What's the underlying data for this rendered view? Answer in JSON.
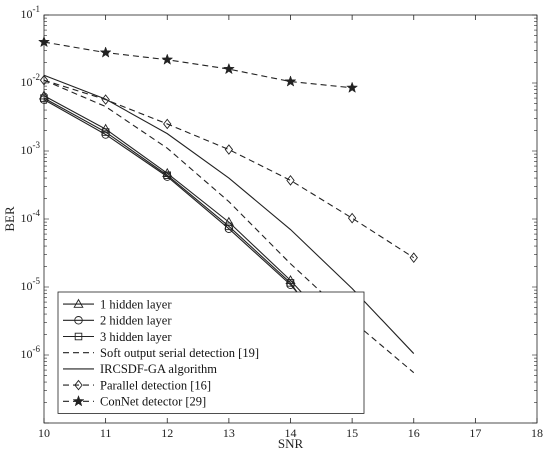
{
  "chart_data": {
    "type": "line",
    "title": "",
    "xlabel": "SNR",
    "ylabel": "BER",
    "xlim": [
      10,
      18
    ],
    "ylim": [
      1e-07,
      0.1
    ],
    "yscale": "log",
    "grid": false,
    "legend_position": "bottom-left",
    "x_ticks": [
      "10",
      "11",
      "12",
      "13",
      "14",
      "15",
      "16",
      "17",
      "18"
    ],
    "y_ticks": [
      {
        "base": "10",
        "exp": "-1"
      },
      {
        "base": "10",
        "exp": "-2"
      },
      {
        "base": "10",
        "exp": "-3"
      },
      {
        "base": "10",
        "exp": "-4"
      },
      {
        "base": "10",
        "exp": "-5"
      },
      {
        "base": "10",
        "exp": "-6"
      }
    ],
    "series": [
      {
        "name": "1 hidden layer",
        "marker": "triangle",
        "dash": "solid",
        "x": [
          10,
          11,
          12,
          13,
          14,
          15
        ],
        "y": [
          0.0065,
          0.0021,
          0.00047,
          9e-05,
          1.25e-05,
          1.3e-06
        ]
      },
      {
        "name": "2 hidden layer",
        "marker": "circle",
        "dash": "solid",
        "x": [
          10,
          11,
          12,
          13,
          14,
          15
        ],
        "y": [
          0.0057,
          0.00175,
          0.00042,
          7.2e-05,
          1.08e-05,
          1e-06
        ]
      },
      {
        "name": "3 hidden layer",
        "marker": "square",
        "dash": "solid",
        "x": [
          10,
          11,
          12,
          13,
          14,
          15
        ],
        "y": [
          0.006,
          0.0019,
          0.00044,
          7.8e-05,
          1.15e-05,
          6e-07
        ]
      },
      {
        "name": "Soft output serial detection [19]",
        "marker": "none",
        "dash": "dashed",
        "x": [
          10,
          11,
          12,
          13,
          14,
          15,
          16
        ],
        "y": [
          0.011,
          0.0045,
          0.0011,
          0.00018,
          2.2e-05,
          3.2e-06,
          5.5e-07
        ]
      },
      {
        "name": "IRCSDF-GA algorithm",
        "marker": "none",
        "dash": "solid",
        "x": [
          10,
          11,
          12,
          13,
          14,
          15,
          16
        ],
        "y": [
          0.013,
          0.0058,
          0.0018,
          0.0004,
          7e-05,
          9.5e-06,
          1.05e-06
        ]
      },
      {
        "name": "Parallel detection [16]",
        "marker": "diamond",
        "dash": "dashed",
        "x": [
          10,
          11,
          12,
          13,
          14,
          15,
          16
        ],
        "y": [
          0.011,
          0.0057,
          0.0025,
          0.00105,
          0.00037,
          0.000103,
          2.7e-05
        ]
      },
      {
        "name": "ConNet detector [29]",
        "marker": "star",
        "dash": "dashed",
        "x": [
          10,
          11,
          12,
          13,
          14,
          15
        ],
        "y": [
          0.04,
          0.028,
          0.022,
          0.016,
          0.0105,
          0.0085
        ]
      }
    ]
  }
}
